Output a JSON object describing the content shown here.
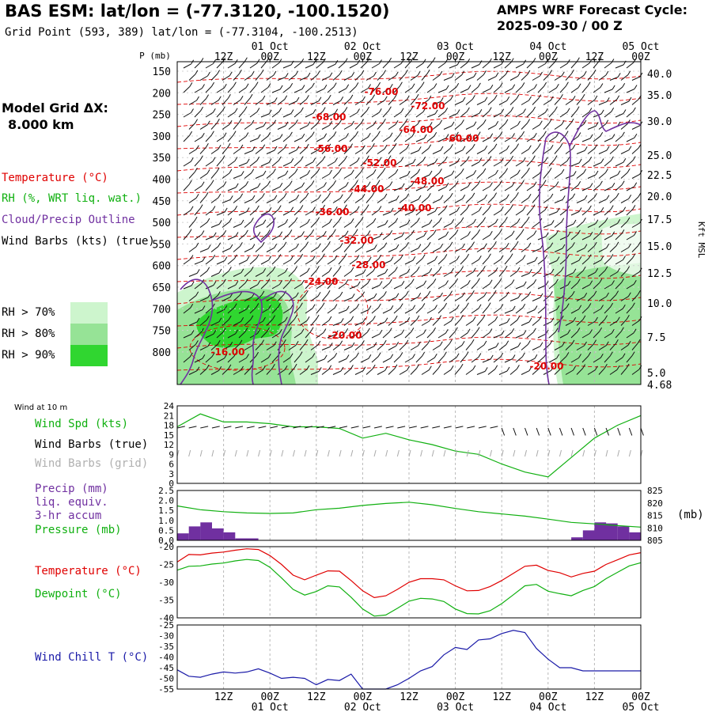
{
  "header": {
    "title": "BAS ESM:  lat/lon = (-77.3120, -100.1520)",
    "grid_point": "Grid Point (593, 389) lat/lon = (-77.3104, -100.2513)",
    "cycle_label": "AMPS WRF Forecast Cycle:",
    "cycle_value": "2025-09-30 / 00  Z"
  },
  "model_grid": {
    "label": "Model Grid ΔX:",
    "value": "8.000 km"
  },
  "legend": {
    "temperature": "Temperature (°C)",
    "rh": "RH (%, WRT liq. wat.)",
    "cloud": "Cloud/Precip Outline",
    "wind_barbs": "Wind Barbs (kts) (true)",
    "rh70": "RH > 70%",
    "rh80": "RH > 80%",
    "rh90": "RH > 90%",
    "colors": {
      "temperature": "#e00000",
      "rh": "#10b010",
      "cloud": "#7030a0",
      "rh70": "#cdf5cd",
      "rh80": "#96e396",
      "rh90": "#30d630",
      "wind_chill": "#1a1aa8"
    }
  },
  "time_axis": {
    "hour_labels": [
      "12Z",
      "00Z",
      "12Z",
      "00Z",
      "12Z",
      "00Z",
      "12Z",
      "00Z",
      "12Z",
      "00Z"
    ],
    "date_labels": [
      "01 Oct",
      "02 Oct",
      "03 Oct",
      "04 Oct",
      "05 Oct"
    ]
  },
  "panel_labels": {
    "wind10": "Wind at 10 m",
    "wind_spd": "Wind Spd (kts)",
    "wind_barbs": "Wind Barbs (true)",
    "wind_barbs_grid": "Wind Barbs (grid)",
    "precip1": "Precip (mm)",
    "precip2": "liq. equiv.",
    "precip3": "3-hr accum",
    "pressure": "Pressure (mb)",
    "pressure_unit": "(mb)",
    "temperature": "Temperature (°C)",
    "dewpoint": "Dewpoint (°C)",
    "wind_chill": "Wind Chill T (°C)"
  },
  "chart_data": [
    {
      "type": "line",
      "title": "",
      "left_axis_label": "P (mb)",
      "pressure_ticks": [
        "150",
        "200",
        "250",
        "300",
        "350",
        "400",
        "450",
        "500",
        "550",
        "600",
        "650",
        "700",
        "750",
        "800"
      ],
      "right_axis_label": "Kft MSL",
      "height_ticks": [
        "40.0",
        "35.0",
        "30.0",
        "25.0",
        "22.5",
        "20.0",
        "17.5",
        "15.0",
        "12.5",
        "10.0",
        "7.5",
        "5.0",
        "4.68"
      ],
      "temperature_contour_labels": [
        "-76.00",
        "-72.00",
        "-68.00",
        "-64.00",
        "-60.00",
        "-56.00",
        "-52.00",
        "-48.00",
        "-44.00",
        "-40.00",
        "-36.00",
        "-32.00",
        "-28.00",
        "-24.00",
        "-20.00",
        "-16.00",
        "-20.00"
      ]
    },
    {
      "type": "line",
      "name": "Wind Spd (kts)",
      "yticks": [
        "24",
        "21",
        "18",
        "15",
        "12",
        "9",
        "6",
        "3",
        "0"
      ],
      "ylim": [
        0,
        24
      ],
      "x_hours": [
        0,
        6,
        12,
        18,
        24,
        30,
        36,
        42,
        48,
        54,
        60,
        66,
        72,
        78,
        84,
        90,
        96,
        102,
        108,
        114,
        120
      ],
      "values": [
        17.5,
        21.5,
        19,
        19,
        18.5,
        17.5,
        17.5,
        17,
        14,
        15.5,
        13.5,
        12,
        10,
        9,
        6,
        3.5,
        2,
        8,
        14,
        18,
        21
      ]
    },
    {
      "type": "line",
      "name": "Pressure (mb)",
      "right_yticks": [
        "825",
        "820",
        "815",
        "810",
        "805"
      ],
      "right_ylim": [
        805,
        825
      ],
      "x_hours": [
        0,
        6,
        12,
        18,
        24,
        30,
        36,
        42,
        48,
        54,
        60,
        66,
        72,
        78,
        84,
        90,
        96,
        102,
        108,
        114,
        120
      ],
      "values": [
        818.8,
        817.3,
        816.5,
        816.0,
        815.8,
        816.0,
        817.3,
        817.9,
        819.0,
        819.8,
        820.3,
        819.3,
        817.8,
        816.5,
        815.6,
        814.7,
        813.5,
        812.2,
        811.6,
        810.9,
        810.3
      ]
    },
    {
      "type": "bar",
      "name": "Precip (mm)",
      "left_yticks": [
        "2.5",
        "2.0",
        "1.5",
        "1.0",
        "0.5",
        "0.0"
      ],
      "ylim": [
        0,
        2.5
      ],
      "x_hours": [
        1.5,
        4.5,
        7.5,
        10.5,
        13.5,
        16.5,
        19.5,
        103.5,
        106.5,
        109.5,
        112.5,
        115.5,
        118.5
      ],
      "values": [
        0.35,
        0.7,
        0.9,
        0.6,
        0.4,
        0.1,
        0.1,
        0.15,
        0.5,
        0.9,
        0.85,
        0.7,
        0.4
      ]
    },
    {
      "type": "line",
      "yticks": [
        "-20",
        "-25",
        "-30",
        "-35",
        "-40"
      ],
      "ylim": [
        -40,
        -20
      ],
      "x_hours": [
        0,
        3,
        6,
        9,
        12,
        15,
        18,
        21,
        24,
        27,
        30,
        33,
        36,
        39,
        42,
        45,
        48,
        51,
        54,
        57,
        60,
        63,
        66,
        69,
        72,
        75,
        78,
        81,
        84,
        87,
        90,
        93,
        96,
        99,
        102,
        105,
        108,
        111,
        114,
        117,
        120
      ],
      "series": [
        {
          "name": "Temperature (°C)",
          "values": [
            -24.3,
            -22.2,
            -22.3,
            -21.8,
            -21.5,
            -21,
            -20.6,
            -20.8,
            -22.5,
            -25,
            -28,
            -29.3,
            -28,
            -26.8,
            -26.9,
            -29.5,
            -32.4,
            -34.3,
            -33.8,
            -32,
            -30,
            -29,
            -29,
            -29.3,
            -31,
            -32.4,
            -32.3,
            -31.2,
            -29.5,
            -27.5,
            -25.5,
            -25.2,
            -26.7,
            -27.3,
            -28.5,
            -27.5,
            -26.9,
            -25,
            -23.7,
            -22.3,
            -21.7
          ]
        },
        {
          "name": "Dewpoint (°C)",
          "values": [
            -26.6,
            -25.5,
            -25.4,
            -24.9,
            -24.6,
            -24,
            -23.6,
            -23.9,
            -25.8,
            -28.8,
            -32,
            -33.6,
            -32.6,
            -31,
            -31.3,
            -34.2,
            -37.5,
            -39.5,
            -39.2,
            -37.3,
            -35.3,
            -34.5,
            -34.7,
            -35.4,
            -37.5,
            -38.8,
            -38.9,
            -38,
            -36,
            -33.5,
            -31,
            -30.6,
            -32.5,
            -33.2,
            -33.8,
            -32.3,
            -31.2,
            -29,
            -27.2,
            -25.4,
            -24.5
          ]
        }
      ]
    },
    {
      "type": "line",
      "name": "Wind Chill T (°C)",
      "yticks": [
        "-25",
        "-30",
        "-35",
        "-40",
        "-45",
        "-50",
        "-55"
      ],
      "ylim": [
        -55,
        -25
      ],
      "x_hours": [
        0,
        3,
        6,
        9,
        12,
        15,
        18,
        21,
        24,
        27,
        30,
        33,
        36,
        39,
        42,
        45,
        48,
        51,
        54,
        57,
        60,
        63,
        66,
        69,
        72,
        75,
        78,
        81,
        84,
        87,
        90,
        93,
        96,
        99,
        102,
        105,
        108,
        111,
        114,
        117,
        120
      ],
      "values": [
        -46,
        -49,
        -49.5,
        -48,
        -47,
        -47.5,
        -47,
        -45.5,
        -47.5,
        -50,
        -49.5,
        -50,
        -53,
        -50.5,
        -51,
        -48,
        -55,
        -55,
        -55,
        -53,
        -50,
        -46.5,
        -44.5,
        -39,
        -35.5,
        -36.5,
        -32,
        -31.5,
        -29,
        -27.5,
        -28.5,
        -36,
        -41,
        -45,
        -45,
        -46.5,
        -46.5,
        -46.5,
        -46.5,
        -46.5,
        -46.5
      ]
    }
  ]
}
